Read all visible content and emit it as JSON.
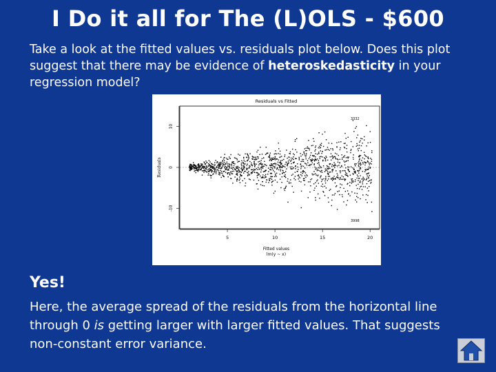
{
  "slide": {
    "title": "I Do it all for The (L)OLS - $600",
    "question_before": "Take a look at the fitted values vs. residuals plot below. Does this plot suggest that there may be evidence of ",
    "question_bold": "heteroskedasticity",
    "question_after": " in your regression model?",
    "answer": "Yes!",
    "explanation_before": "Here, the average spread of the residuals from the horizontal line through 0 ",
    "explanation_italic": "is",
    "explanation_after": " getting larger with larger fitted values. That suggests non-constant error variance.",
    "home_icon": "home-icon"
  },
  "plot": {
    "title": "Residuals vs Fitted",
    "xlabel": "Fitted values",
    "xlabel_sub": "lm(y ~ x)",
    "ylabel": "Residuals",
    "xticks": [
      "5",
      "10",
      "15",
      "20"
    ],
    "yticks": [
      "-10",
      "0",
      "10"
    ],
    "outlier_labels": [
      "3332",
      "3998"
    ]
  },
  "chart_data": {
    "type": "scatter",
    "title": "Residuals vs Fitted",
    "xlabel": "Fitted values",
    "ylabel": "Residuals",
    "xlim": [
      0,
      21
    ],
    "ylim": [
      -15,
      15
    ],
    "x_ticks": [
      5,
      10,
      15,
      20
    ],
    "y_ticks": [
      -10,
      0,
      10
    ],
    "grid": false,
    "legend": "none",
    "point_color": "#000000",
    "trend": "residual spread around 0 widens as fitted values increase (fan shape)"
  }
}
